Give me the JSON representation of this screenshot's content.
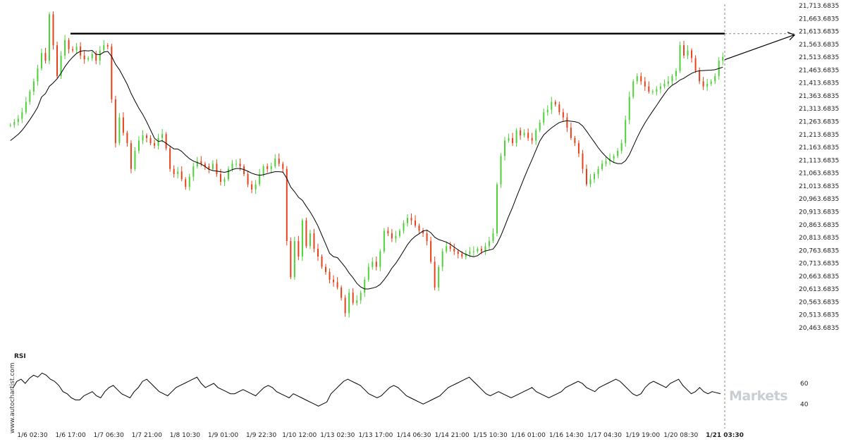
{
  "chart_data": {
    "type": "candlestick",
    "title": "",
    "price_axis_ticks": [
      "21,713.6835",
      "21,663.6835",
      "21,613.6835",
      "21,563.6835",
      "21,513.6835",
      "21,463.6835",
      "21,413.6835",
      "21,363.6835",
      "21,313.6835",
      "21,263.6835",
      "21,213.6835",
      "21,163.6835",
      "21,113.6835",
      "21,063.6835",
      "21,013.6835",
      "20,963.6835",
      "20,913.6835",
      "20,863.6835",
      "20,813.6835",
      "20,763.6835",
      "20,713.6835",
      "20,663.6835",
      "20,613.6835",
      "20,563.6835",
      "20,513.6835",
      "20,463.6835"
    ],
    "ylim": [
      20463.6835,
      21713.6835
    ],
    "time_axis_ticks": [
      "1/6 02:30",
      "1/6 17:00",
      "1/7 06:30",
      "1/7 21:00",
      "1/8 10:30",
      "1/9 01:00",
      "1/9 22:30",
      "1/10 12:00",
      "1/13 02:30",
      "1/13 17:00",
      "1/14 06:30",
      "1/14 21:00",
      "1/15 10:30",
      "1/16 01:00",
      "1/16 14:30",
      "1/17 04:30",
      "1/19 19:00",
      "1/20 08:30",
      "1/21 03:30"
    ],
    "highlighted_time": "1/21 03:30",
    "resistance_level": 21605,
    "close_series": [
      21250,
      21262,
      21275,
      21300,
      21340,
      21380,
      21420,
      21470,
      21530,
      21500,
      21680,
      21560,
      21440,
      21520,
      21580,
      21545,
      21540,
      21555,
      21520,
      21505,
      21510,
      21525,
      21500,
      21540,
      21560,
      21555,
      21350,
      21180,
      21280,
      21220,
      21180,
      21080,
      21150,
      21190,
      21210,
      21200,
      21180,
      21170,
      21200,
      21215,
      21160,
      21080,
      21060,
      21070,
      21040,
      21010,
      21050,
      21090,
      21110,
      21100,
      21090,
      21080,
      21100,
      21060,
      21030,
      21040,
      21080,
      21100,
      21100,
      21090,
      21060,
      21020,
      21000,
      21020,
      21060,
      21090,
      21080,
      21090,
      21120,
      21100,
      21080,
      20800,
      20660,
      20800,
      20740,
      20880,
      20780,
      20830,
      20770,
      20740,
      20700,
      20680,
      20650,
      20640,
      20620,
      20580,
      20520,
      20600,
      20560,
      20570,
      20600,
      20650,
      20700,
      20720,
      20700,
      20760,
      20840,
      20830,
      20810,
      20820,
      20840,
      20870,
      20890,
      20880,
      20860,
      20840,
      20830,
      20800,
      20720,
      20620,
      20700,
      20760,
      20780,
      20770,
      20760,
      20750,
      20740,
      20750,
      20760,
      20760,
      20770,
      20760,
      20780,
      20800,
      20830,
      21020,
      21130,
      21190,
      21200,
      21180,
      21230,
      21210,
      21220,
      21200,
      21190,
      21230,
      21260,
      21300,
      21310,
      21340,
      21330,
      21300,
      21280,
      21240,
      21200,
      21180,
      21140,
      21080,
      21020,
      21040,
      21060,
      21080,
      21100,
      21110,
      21120,
      21130,
      21150,
      21180,
      21270,
      21360,
      21420,
      21440,
      21420,
      21400,
      21380,
      21380,
      21390,
      21400,
      21410,
      21420,
      21440,
      21460,
      21560,
      21520,
      21540,
      21510,
      21460,
      21420,
      21400,
      21410,
      21420,
      21440,
      21500,
      21515
    ],
    "rsi_ticks": [
      "60",
      "40"
    ],
    "rsi_ylim": [
      30,
      75
    ],
    "rsi_series": [
      55,
      62,
      64,
      60,
      65,
      68,
      66,
      70,
      68,
      64,
      62,
      58,
      52,
      50,
      46,
      44,
      44,
      48,
      50,
      52,
      48,
      46,
      52,
      56,
      58,
      54,
      50,
      48,
      46,
      52,
      56,
      62,
      64,
      60,
      56,
      52,
      50,
      48,
      52,
      56,
      58,
      60,
      62,
      64,
      66,
      60,
      56,
      58,
      60,
      56,
      54,
      52,
      50,
      50,
      52,
      54,
      52,
      50,
      48,
      52,
      56,
      58,
      56,
      52,
      50,
      48,
      46,
      50,
      48,
      46,
      44,
      42,
      40,
      38,
      40,
      42,
      50,
      54,
      58,
      62,
      64,
      62,
      60,
      58,
      54,
      50,
      48,
      46,
      48,
      52,
      56,
      58,
      56,
      52,
      48,
      46,
      44,
      42,
      40,
      42,
      44,
      46,
      48,
      52,
      56,
      58,
      60,
      62,
      64,
      66,
      62,
      58,
      54,
      50,
      48,
      50,
      52,
      50,
      48,
      46,
      48,
      50,
      52,
      54,
      56,
      52,
      50,
      48,
      46,
      48,
      50,
      52,
      56,
      58,
      60,
      62,
      60,
      56,
      54,
      52,
      56,
      58,
      60,
      62,
      64,
      62,
      58,
      54,
      50,
      48,
      50,
      56,
      60,
      62,
      60,
      58,
      56,
      60,
      62,
      64,
      58,
      54,
      50,
      52,
      56,
      52,
      50,
      52,
      51,
      50
    ]
  },
  "watermark_text": "www.autochartist.com",
  "brand_text": "Markets",
  "panel_label": "RSI",
  "colors": {
    "up": "#4cd137",
    "down": "#e84118",
    "line": "#000000",
    "grid": "none"
  }
}
